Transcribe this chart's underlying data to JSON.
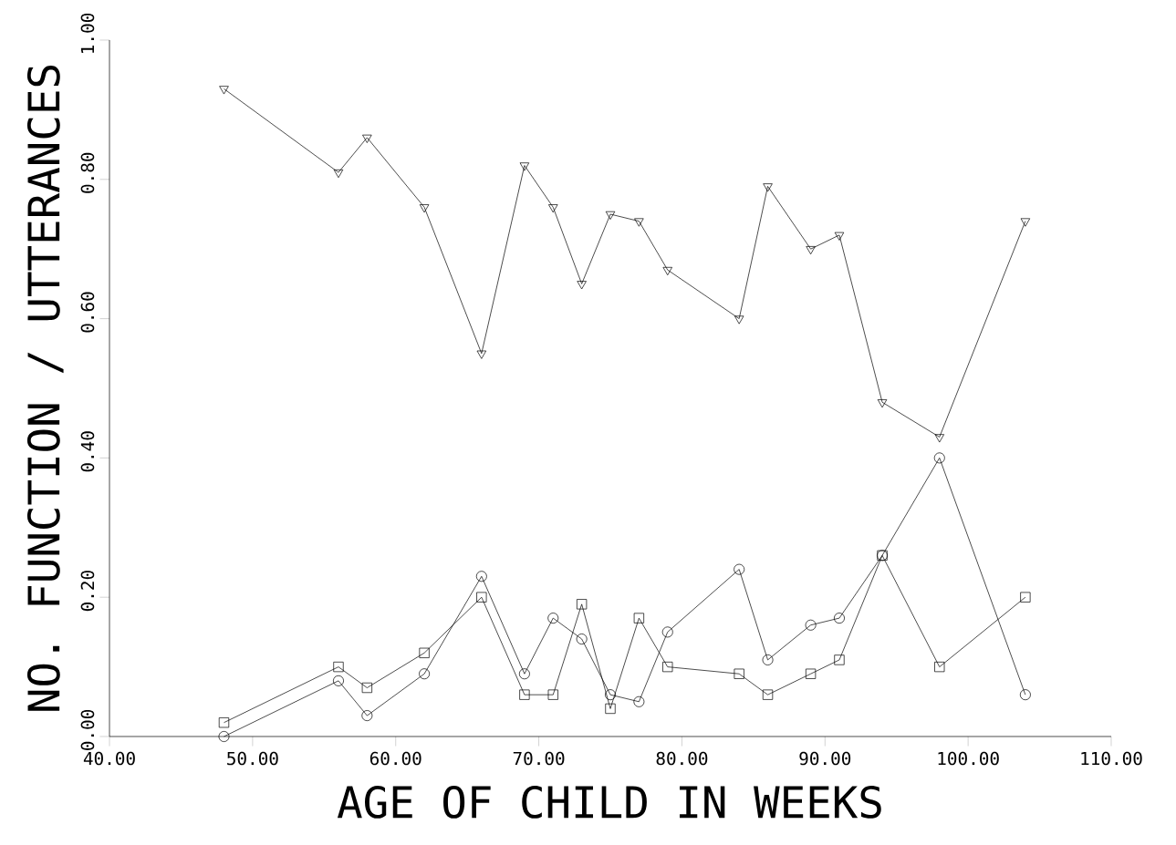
{
  "chart_data": {
    "type": "line",
    "xlabel": "AGE OF CHILD IN WEEKS",
    "ylabel": "NO. FUNCTION / UTTERANCES",
    "x": [
      48,
      56,
      58,
      62,
      66,
      69,
      71,
      73,
      75,
      77,
      79,
      84,
      86,
      89,
      91,
      94,
      98,
      104
    ],
    "series": [
      {
        "color": "#000000",
        "marker": "triangle",
        "values": [
          0.93,
          0.81,
          0.86,
          0.76,
          0.55,
          0.82,
          0.76,
          0.65,
          0.75,
          0.74,
          0.67,
          0.6,
          0.79,
          0.7,
          0.72,
          0.48,
          0.43,
          0.74
        ]
      },
      {
        "color": "#000000",
        "marker": "circle",
        "values": [
          0.0,
          0.08,
          0.03,
          0.09,
          0.23,
          0.09,
          0.17,
          0.14,
          0.06,
          0.05,
          0.15,
          0.24,
          0.11,
          0.16,
          0.17,
          0.26,
          0.4,
          0.06
        ]
      },
      {
        "color": "#000000",
        "marker": "square",
        "values": [
          0.02,
          0.1,
          0.07,
          0.12,
          0.2,
          0.06,
          0.06,
          0.19,
          0.04,
          0.17,
          0.1,
          0.09,
          0.06,
          0.09,
          0.11,
          0.26,
          0.1,
          0.2
        ]
      }
    ],
    "xlim": [
      40,
      110
    ],
    "xticks": [
      {
        "value": 40,
        "label": "40.00"
      },
      {
        "value": 50,
        "label": "50.00"
      },
      {
        "value": 60,
        "label": "60.00"
      },
      {
        "value": 70,
        "label": "70.00"
      },
      {
        "value": 80,
        "label": "80.00"
      },
      {
        "value": 90,
        "label": "90.00"
      },
      {
        "value": 100,
        "label": "100.00"
      },
      {
        "value": 110,
        "label": "110.00"
      }
    ],
    "ylim": [
      0,
      1
    ],
    "yticks": [
      {
        "value": 0,
        "label": "0.00"
      },
      {
        "value": 0.2,
        "label": "0.20"
      },
      {
        "value": 0.4,
        "label": "0.40"
      },
      {
        "value": 0.6,
        "label": "0.60"
      },
      {
        "value": 0.8,
        "label": "0.80"
      },
      {
        "value": 1.0,
        "label": "1.00"
      }
    ],
    "grid": false,
    "line_style": "solid"
  }
}
